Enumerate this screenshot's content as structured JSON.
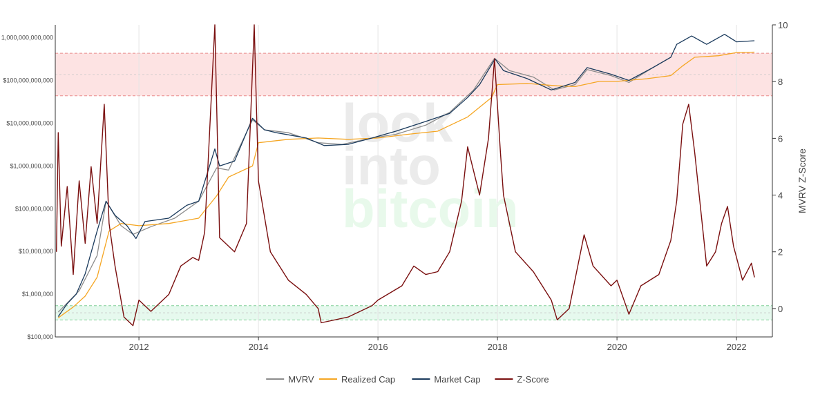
{
  "watermark": {
    "line1": "look",
    "line2": "into",
    "line3": "bitcoin"
  },
  "chart_data": {
    "type": "line",
    "xlim": [
      2010.6,
      2022.6
    ],
    "x_ticks": [
      {
        "value": 2012,
        "label": "2012"
      },
      {
        "value": 2014,
        "label": "2014"
      },
      {
        "value": 2016,
        "label": "2016"
      },
      {
        "value": 2018,
        "label": "2018"
      },
      {
        "value": 2020,
        "label": "2020"
      },
      {
        "value": 2022,
        "label": "2022"
      }
    ],
    "y_left": {
      "scale": "log",
      "range": [
        100000,
        2000000000000
      ],
      "ticks": [
        {
          "value": 100000,
          "label": "$100,000"
        },
        {
          "value": 1000000,
          "label": "$1,000,000"
        },
        {
          "value": 10000000,
          "label": "$10,000,000"
        },
        {
          "value": 100000000,
          "label": "$100,000,000"
        },
        {
          "value": 1000000000,
          "label": "$1,000,000,000"
        },
        {
          "value": 10000000000,
          "label": "$10,000,000,000"
        },
        {
          "value": 100000000000,
          "label": "$100,000,000,000"
        },
        {
          "value": 1000000000000,
          "label": "1,000,000,000,000"
        }
      ]
    },
    "y_right": {
      "title": "MVRV Z-Score",
      "range": [
        -1,
        10
      ],
      "ticks": [
        0,
        2,
        4,
        6,
        8,
        10
      ]
    },
    "bands": [
      {
        "axis": "right",
        "from": 7.5,
        "to": 9.0,
        "color": "#fde3e3",
        "border": "#e98a8a",
        "mid": 8.25
      },
      {
        "axis": "right",
        "from": -0.4,
        "to": 0.1,
        "color": "#e6f9ee",
        "border": "#7fcf96",
        "mid": -0.15
      }
    ],
    "series": [
      {
        "name": "MVRV",
        "axis": "left",
        "color": "#8c8c8c",
        "points": [
          [
            2010.65,
            380000
          ],
          [
            2011.0,
            1200000
          ],
          [
            2011.3,
            8000000
          ],
          [
            2011.45,
            150000000
          ],
          [
            2011.7,
            40000000
          ],
          [
            2011.9,
            25000000
          ],
          [
            2012.2,
            38000000
          ],
          [
            2012.6,
            60000000
          ],
          [
            2013.0,
            150000000
          ],
          [
            2013.3,
            900000000
          ],
          [
            2013.5,
            800000000
          ],
          [
            2013.9,
            12000000000
          ],
          [
            2014.1,
            7000000000
          ],
          [
            2014.5,
            6000000000
          ],
          [
            2015.0,
            3500000000
          ],
          [
            2015.4,
            3200000000
          ],
          [
            2015.9,
            4500000000
          ],
          [
            2016.3,
            5500000000
          ],
          [
            2016.8,
            9000000000
          ],
          [
            2017.2,
            18000000000
          ],
          [
            2017.6,
            60000000000
          ],
          [
            2017.95,
            330000000000
          ],
          [
            2018.2,
            170000000000
          ],
          [
            2018.6,
            120000000000
          ],
          [
            2018.95,
            60000000000
          ],
          [
            2019.3,
            80000000000
          ],
          [
            2019.5,
            180000000000
          ],
          [
            2019.9,
            130000000000
          ],
          [
            2020.2,
            90000000000
          ],
          [
            2020.6,
            200000000000
          ],
          [
            2020.9,
            350000000000
          ]
        ]
      },
      {
        "name": "Realized Cap",
        "axis": "left",
        "color": "#f5a623",
        "points": [
          [
            2010.65,
            280000
          ],
          [
            2010.9,
            500000
          ],
          [
            2011.1,
            900000
          ],
          [
            2011.3,
            2500000
          ],
          [
            2011.5,
            30000000
          ],
          [
            2011.7,
            45000000
          ],
          [
            2012.0,
            40000000
          ],
          [
            2012.5,
            45000000
          ],
          [
            2013.0,
            60000000
          ],
          [
            2013.3,
            200000000
          ],
          [
            2013.5,
            550000000
          ],
          [
            2013.9,
            1000000000
          ],
          [
            2014.0,
            3500000000
          ],
          [
            2014.5,
            4200000000
          ],
          [
            2015.0,
            4500000000
          ],
          [
            2015.5,
            4200000000
          ],
          [
            2016.0,
            4500000000
          ],
          [
            2016.5,
            5500000000
          ],
          [
            2017.0,
            6500000000
          ],
          [
            2017.5,
            14000000000
          ],
          [
            2017.9,
            40000000000
          ],
          [
            2018.0,
            80000000000
          ],
          [
            2018.5,
            85000000000
          ],
          [
            2019.0,
            75000000000
          ],
          [
            2019.3,
            72000000000
          ],
          [
            2019.7,
            95000000000
          ],
          [
            2020.0,
            95000000000
          ],
          [
            2020.5,
            110000000000
          ],
          [
            2020.9,
            130000000000
          ],
          [
            2021.1,
            220000000000
          ],
          [
            2021.3,
            350000000000
          ],
          [
            2021.7,
            380000000000
          ],
          [
            2022.0,
            450000000000
          ],
          [
            2022.3,
            460000000000
          ]
        ]
      },
      {
        "name": "Market Cap",
        "axis": "left",
        "color": "#1a3a5c",
        "points": [
          [
            2010.65,
            300000
          ],
          [
            2010.8,
            600000
          ],
          [
            2010.95,
            1000000
          ],
          [
            2011.1,
            3000000
          ],
          [
            2011.3,
            30000000
          ],
          [
            2011.45,
            150000000
          ],
          [
            2011.6,
            70000000
          ],
          [
            2011.8,
            40000000
          ],
          [
            2011.95,
            20000000
          ],
          [
            2012.1,
            50000000
          ],
          [
            2012.5,
            60000000
          ],
          [
            2012.8,
            120000000
          ],
          [
            2013.0,
            150000000
          ],
          [
            2013.27,
            2500000000
          ],
          [
            2013.35,
            1000000000
          ],
          [
            2013.6,
            1300000000
          ],
          [
            2013.9,
            13000000000
          ],
          [
            2014.1,
            7000000000
          ],
          [
            2014.3,
            6000000000
          ],
          [
            2014.8,
            4500000000
          ],
          [
            2015.1,
            3000000000
          ],
          [
            2015.5,
            3200000000
          ],
          [
            2015.9,
            4500000000
          ],
          [
            2016.3,
            6500000000
          ],
          [
            2016.8,
            11000000000
          ],
          [
            2017.2,
            17000000000
          ],
          [
            2017.5,
            40000000000
          ],
          [
            2017.7,
            80000000000
          ],
          [
            2017.96,
            320000000000
          ],
          [
            2018.1,
            170000000000
          ],
          [
            2018.5,
            110000000000
          ],
          [
            2018.9,
            60000000000
          ],
          [
            2019.3,
            90000000000
          ],
          [
            2019.5,
            200000000000
          ],
          [
            2019.9,
            140000000000
          ],
          [
            2020.2,
            100000000000
          ],
          [
            2020.6,
            200000000000
          ],
          [
            2020.9,
            350000000000
          ],
          [
            2021.0,
            700000000000
          ],
          [
            2021.25,
            1100000000000
          ],
          [
            2021.5,
            700000000000
          ],
          [
            2021.8,
            1200000000000
          ],
          [
            2022.0,
            800000000000
          ],
          [
            2022.3,
            850000000000
          ]
        ]
      },
      {
        "name": "Z-Score",
        "axis": "right",
        "color": "#7a0f0f",
        "points": [
          [
            2010.62,
            2.0
          ],
          [
            2010.65,
            6.2
          ],
          [
            2010.7,
            2.2
          ],
          [
            2010.8,
            4.3
          ],
          [
            2010.9,
            1.2
          ],
          [
            2011.0,
            4.5
          ],
          [
            2011.1,
            2.3
          ],
          [
            2011.2,
            5.0
          ],
          [
            2011.3,
            3.0
          ],
          [
            2011.42,
            7.2
          ],
          [
            2011.5,
            3.0
          ],
          [
            2011.6,
            1.5
          ],
          [
            2011.75,
            -0.3
          ],
          [
            2011.9,
            -0.6
          ],
          [
            2012.0,
            0.3
          ],
          [
            2012.2,
            -0.1
          ],
          [
            2012.5,
            0.5
          ],
          [
            2012.7,
            1.5
          ],
          [
            2012.9,
            1.8
          ],
          [
            2013.0,
            1.7
          ],
          [
            2013.1,
            2.7
          ],
          [
            2013.27,
            10.0
          ],
          [
            2013.35,
            2.5
          ],
          [
            2013.6,
            2.0
          ],
          [
            2013.8,
            3.0
          ],
          [
            2013.93,
            10.0
          ],
          [
            2014.0,
            4.5
          ],
          [
            2014.2,
            2.0
          ],
          [
            2014.5,
            1.0
          ],
          [
            2014.8,
            0.5
          ],
          [
            2015.0,
            0.0
          ],
          [
            2015.05,
            -0.5
          ],
          [
            2015.5,
            -0.3
          ],
          [
            2015.9,
            0.1
          ],
          [
            2016.0,
            0.3
          ],
          [
            2016.4,
            0.8
          ],
          [
            2016.6,
            1.5
          ],
          [
            2016.8,
            1.2
          ],
          [
            2017.0,
            1.3
          ],
          [
            2017.2,
            2.0
          ],
          [
            2017.4,
            3.8
          ],
          [
            2017.5,
            5.7
          ],
          [
            2017.7,
            4.0
          ],
          [
            2017.85,
            6.0
          ],
          [
            2017.95,
            8.8
          ],
          [
            2018.05,
            5.5
          ],
          [
            2018.1,
            4.0
          ],
          [
            2018.3,
            2.0
          ],
          [
            2018.6,
            1.3
          ],
          [
            2018.9,
            0.3
          ],
          [
            2019.0,
            -0.4
          ],
          [
            2019.2,
            0.0
          ],
          [
            2019.45,
            2.6
          ],
          [
            2019.6,
            1.5
          ],
          [
            2019.9,
            0.8
          ],
          [
            2020.0,
            1.0
          ],
          [
            2020.2,
            -0.2
          ],
          [
            2020.4,
            0.8
          ],
          [
            2020.7,
            1.2
          ],
          [
            2020.9,
            2.4
          ],
          [
            2021.0,
            3.8
          ],
          [
            2021.1,
            6.5
          ],
          [
            2021.2,
            7.2
          ],
          [
            2021.3,
            5.5
          ],
          [
            2021.5,
            1.5
          ],
          [
            2021.65,
            2.0
          ],
          [
            2021.75,
            3.0
          ],
          [
            2021.85,
            3.6
          ],
          [
            2021.95,
            2.2
          ],
          [
            2022.1,
            1.0
          ],
          [
            2022.25,
            1.6
          ],
          [
            2022.3,
            1.1
          ]
        ]
      }
    ],
    "legend": {
      "placement": "bottom-center",
      "entries": [
        {
          "label": "MVRV",
          "color": "#8c8c8c"
        },
        {
          "label": "Realized Cap",
          "color": "#f5a623"
        },
        {
          "label": "Market Cap",
          "color": "#1a3a5c"
        },
        {
          "label": "Z-Score",
          "color": "#7a0f0f"
        }
      ]
    }
  }
}
